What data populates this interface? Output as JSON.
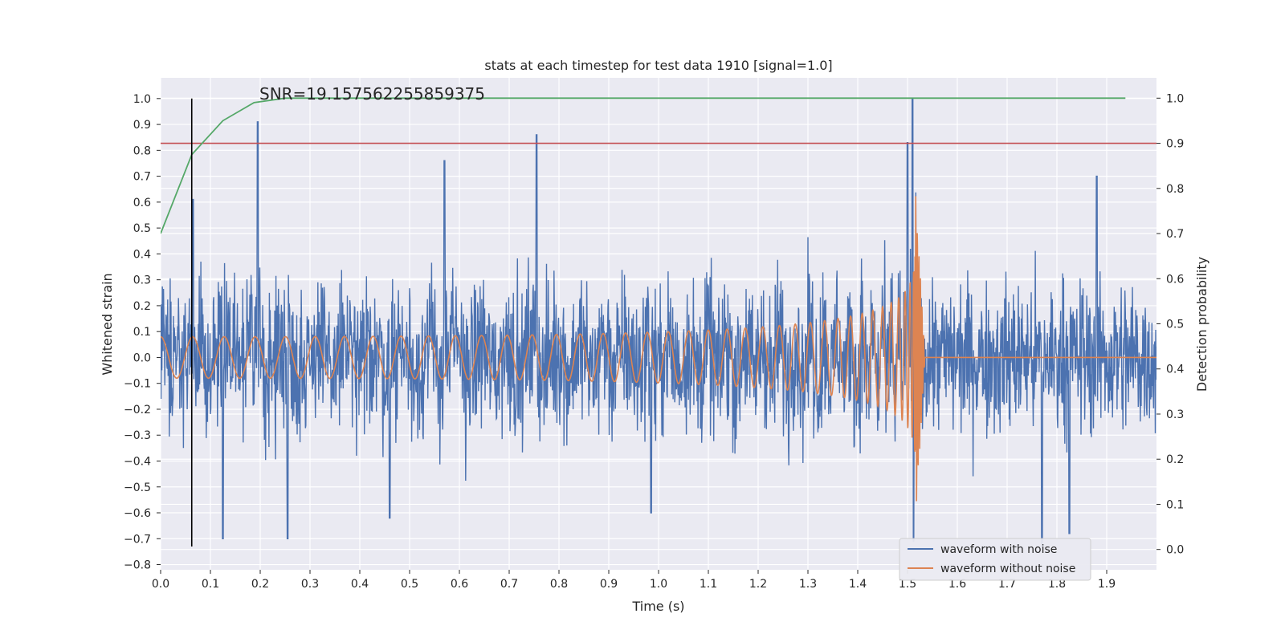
{
  "chart_data": {
    "type": "line",
    "title": "stats at each timestep for test data 1910 [signal=1.0]",
    "xlabel": "Time (s)",
    "ylabel": "Whitened strain",
    "y2label": "Detection probability",
    "annotation": "SNR=19.157562255859375",
    "xlim": [
      0.0,
      2.0
    ],
    "ylim": [
      -0.82,
      1.08
    ],
    "y2lim": [
      -0.045,
      1.045
    ],
    "x_ticks": [
      "0.0",
      "0.1",
      "0.2",
      "0.3",
      "0.4",
      "0.5",
      "0.6",
      "0.7",
      "0.8",
      "0.9",
      "1.0",
      "1.1",
      "1.2",
      "1.3",
      "1.4",
      "1.5",
      "1.6",
      "1.7",
      "1.8",
      "1.9"
    ],
    "y_ticks": [
      "−0.8",
      "−0.7",
      "−0.6",
      "−0.5",
      "−0.4",
      "−0.3",
      "−0.2",
      "−0.1",
      "0.0",
      "0.1",
      "0.2",
      "0.3",
      "0.4",
      "0.5",
      "0.6",
      "0.7",
      "0.8",
      "0.9",
      "1.0"
    ],
    "y2_ticks": [
      "0.0",
      "0.1",
      "0.2",
      "0.3",
      "0.4",
      "0.5",
      "0.6",
      "0.7",
      "0.8",
      "0.9",
      "1.0"
    ],
    "grid": true,
    "legend_position": "lower-right",
    "series": [
      {
        "name": "waveform with noise",
        "color": "#4c72b0",
        "axis": "left",
        "spikes": [
          [
            0.195,
            0.91
          ],
          [
            0.755,
            0.86
          ],
          [
            1.51,
            1.0
          ],
          [
            1.5,
            0.83
          ],
          [
            0.57,
            0.76
          ],
          [
            1.88,
            0.7
          ],
          [
            0.065,
            0.61
          ],
          [
            1.77,
            -0.73
          ],
          [
            1.825,
            -0.68
          ],
          [
            0.125,
            -0.7
          ],
          [
            0.255,
            -0.7
          ],
          [
            1.512,
            -0.71
          ],
          [
            0.985,
            -0.6
          ],
          [
            0.46,
            -0.62
          ]
        ],
        "noise_amplitude": 0.35
      },
      {
        "name": "waveform without noise",
        "color": "#dd8452",
        "axis": "left",
        "chirp": {
          "t_merge": 1.515,
          "amp_start": 0.08,
          "amp_peak": 0.52,
          "freq_start": 28,
          "freq_merge": 250,
          "min_after_merge": -0.68
        }
      },
      {
        "name": "",
        "color": "#55a868",
        "axis": "right",
        "x": [
          0.0,
          0.0625,
          0.125,
          0.1875,
          0.25,
          0.3125,
          0.375,
          0.4375,
          0.5,
          0.75,
          1.0,
          1.25,
          1.5,
          1.75,
          1.9375
        ],
        "y": [
          0.7,
          0.875,
          0.95,
          0.99,
          1.0,
          1.0,
          1.0,
          1.0,
          1.0,
          1.0,
          1.0,
          1.0,
          1.0,
          1.0,
          1.0
        ]
      }
    ],
    "threshold": {
      "value": 0.9,
      "axis": "right",
      "color": "#c44e52"
    },
    "marker_line": {
      "x": 0.0625,
      "y_from": -0.73,
      "y_to": 1.0,
      "color": "#000000"
    }
  }
}
